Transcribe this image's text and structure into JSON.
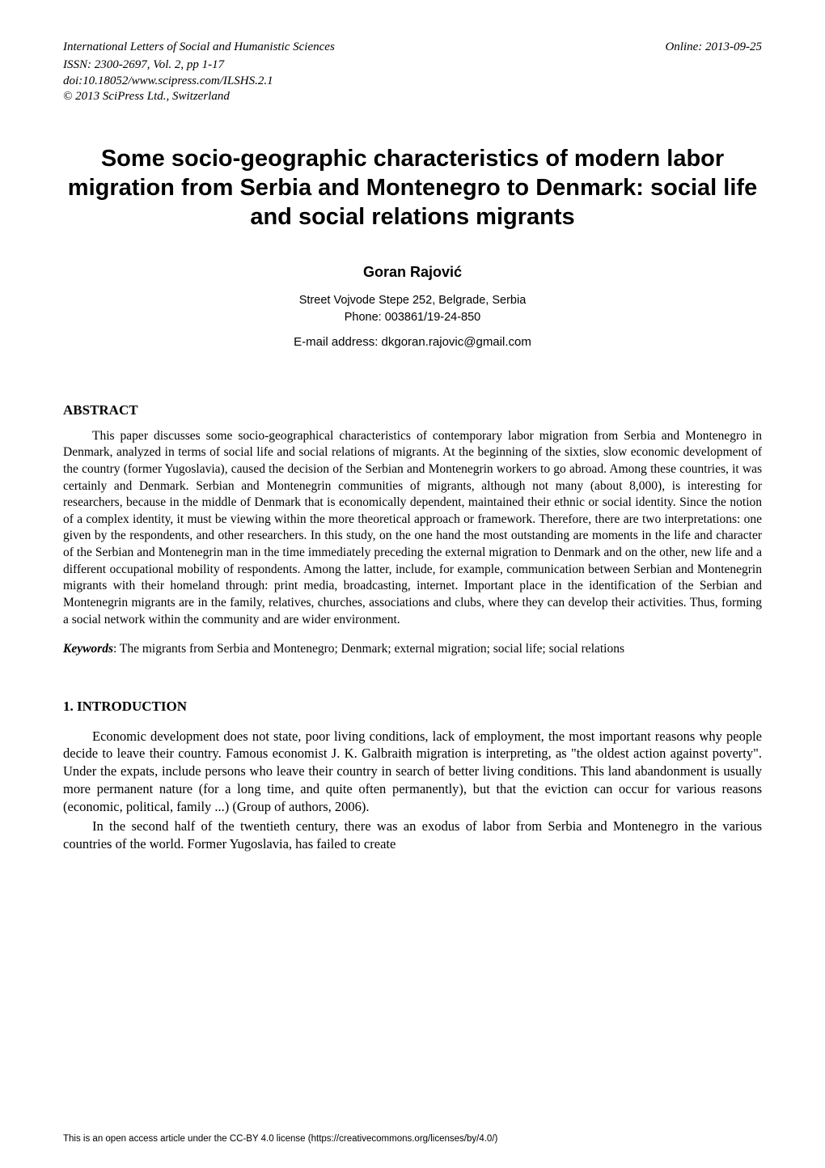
{
  "header": {
    "journal": "International Letters of Social and Humanistic Sciences",
    "online": "Online: 2013-09-25",
    "issn": "ISSN: 2300-2697, Vol. 2, pp 1-17",
    "doi": "doi:10.18052/www.scipress.com/ILSHS.2.1",
    "copyright": "© 2013 SciPress Ltd., Switzerland"
  },
  "title": "Some socio-geographic characteristics of modern labor migration from Serbia and Montenegro to Denmark: social life and social relations migrants",
  "author": "Goran Rajović",
  "affiliation_line1": "Street Vojvode Stepe 252, Belgrade, Serbia",
  "affiliation_line2": "Phone: 003861/19-24-850",
  "email": "E-mail address: dkgoran.rajovic@gmail.com",
  "abstract": {
    "heading": "ABSTRACT",
    "body": "This paper discusses some socio-geographical characteristics of contemporary labor migration from Serbia and Montenegro in Denmark, analyzed in terms of social life and social relations of migrants. At the beginning of the sixties, slow economic development of the country (former Yugoslavia), caused the decision of the Serbian and Montenegrin workers to go abroad. Among these countries, it was certainly and Denmark. Serbian and Montenegrin communities of migrants, although not many (about 8,000), is interesting for researchers, because in the middle of Denmark that is economically dependent, maintained their ethnic or social identity. Since the notion of a complex identity, it must be viewing within the more theoretical approach or framework. Therefore, there are two interpretations: one given by the respondents, and other researchers. In this study, on the one hand the most outstanding are moments in the life and character of the Serbian and Montenegrin man in the time immediately preceding the external migration to Denmark and on the other, new life and a different occupational mobility of respondents. Among the latter, include, for example, communication between Serbian and Montenegrin migrants with their homeland through: print media, broadcasting, internet. Important place in the identification of the Serbian and Montenegrin migrants are in the family, relatives, churches, associations and clubs, where they can develop their activities. Thus, forming a social network within the community and are wider environment."
  },
  "keywords": {
    "label": "Keywords",
    "text": ": The migrants from Serbia and Montenegro; Denmark; external migration; social life; social relations"
  },
  "intro": {
    "heading": "1.  INTRODUCTION",
    "para1": "Economic development does not state, poor living conditions, lack of employment, the most important reasons why people decide to leave their country. Famous economist J. K. Galbraith migration is interpreting, as \"the oldest action against poverty\". Under the expats, include persons who leave their country in search of better living conditions. This land abandonment is usually more permanent nature (for a long time, and quite often permanently), but that the eviction can occur for various reasons (economic, political, family ...) (Group of authors, 2006).",
    "para2": "In the second half of the twentieth century, there was an exodus of labor from Serbia and Montenegro in the various countries of the world. Former Yugoslavia, has failed to create"
  },
  "footer": "This is an open access article under the CC-BY 4.0 license (https://creativecommons.org/licenses/by/4.0/)"
}
